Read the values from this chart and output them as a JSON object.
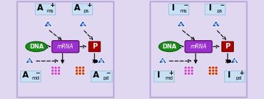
{
  "bg_outer": "#e0d8f0",
  "panel_bg": "#dceaf8",
  "panel_border": "#b8a8d8",
  "dna_color": "#1a8c1a",
  "dna_border": "#005500",
  "mrna_color": "#9b30d0",
  "mrna_border": "#4a004a",
  "p_color": "#aa0000",
  "p_border": "#660000",
  "triangle_color": "#2255cc",
  "purple_dot_color": "#cc44cc",
  "red_dot_color": "#cc3300",
  "label_box_color": "#c8e0f4",
  "label_box_border": "#99bbdd",
  "arrow_color": "#111111",
  "panels": [
    {
      "labels": {
        "top_left": {
          "main": "A",
          "sub": "ms",
          "sup": "+"
        },
        "top_right": {
          "main": "A",
          "sub": "ps",
          "sup": "+"
        },
        "bot_left": {
          "main": "A",
          "sub": "md",
          "sup": "−"
        },
        "bot_right": {
          "main": "A",
          "sub": "pd",
          "sup": "−"
        }
      }
    },
    {
      "labels": {
        "top_left": {
          "main": "I",
          "sub": "ms",
          "sup": "−"
        },
        "top_right": {
          "main": "I",
          "sub": "ps",
          "sup": "−"
        },
        "bot_left": {
          "main": "I",
          "sub": "md",
          "sup": "+"
        },
        "bot_right": {
          "main": "I",
          "sub": "pd",
          "sup": "+"
        }
      }
    }
  ]
}
